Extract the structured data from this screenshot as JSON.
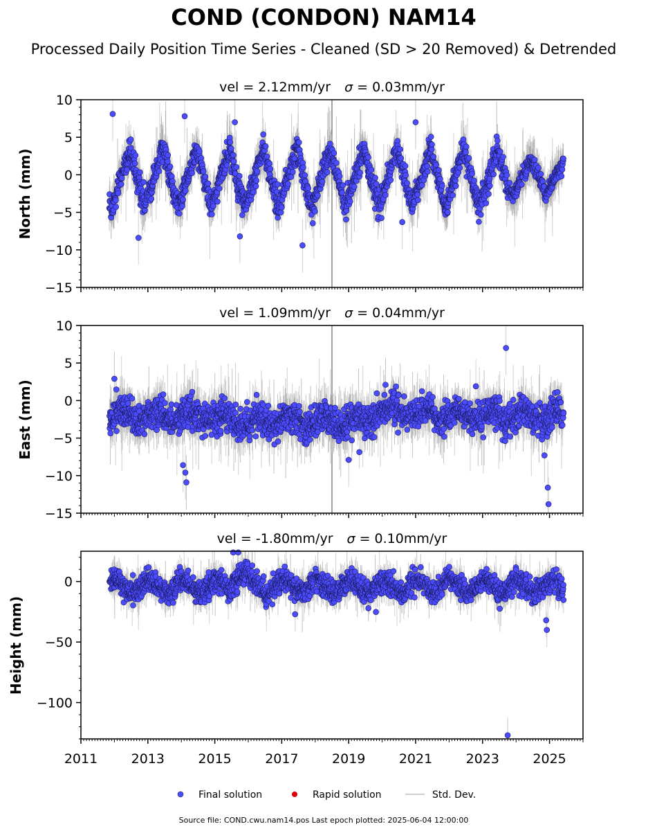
{
  "figure": {
    "title": "COND (CONDON) NAM14",
    "subtitle": "Processed Daily Position Time Series - Cleaned (SD > 20 Removed) & Detrended",
    "footer": "Source file: COND.cwu.nam14.pos  Last epoch plotted: 2025-06-04 12:00:00"
  },
  "colors": {
    "final_solution": "#4b4bff",
    "marker_edge": "#1a1a5a",
    "rapid_solution": "#e00000",
    "std_dev": "#bdbdbd",
    "std_dev_dense": "#555555"
  },
  "legend": {
    "placement": "bottom-center",
    "entries": [
      {
        "label": "Final solution",
        "marker": "circle",
        "color": "#4b4bff"
      },
      {
        "label": "Rapid solution",
        "marker": "circle",
        "color": "#e00000"
      },
      {
        "label": "Std. Dev.",
        "marker": "line",
        "color": "#bdbdbd"
      }
    ]
  },
  "chart_data": [
    {
      "type": "scatter",
      "component": "north",
      "title_prefix": "vel = 2.12mm/yr",
      "title_suffix": "= 0.03mm/yr",
      "sigma_symbol": "σ",
      "ylabel": "North (mm)",
      "xlim": [
        2011.0,
        2026.0
      ],
      "ylim": [
        -15,
        10
      ],
      "yticks": [
        -15,
        -10,
        -5,
        0,
        5,
        10
      ],
      "yticks_labels": [
        "−15",
        "−10",
        "−5",
        "0",
        "5",
        "10"
      ],
      "data_start": 2011.85,
      "data_end": 2025.42,
      "seasonal_amplitude_mm": 4.0,
      "noise_sd_mm": 0.8,
      "typical_std_dev_mm": 2.0,
      "outliers": [
        {
          "x": 2011.95,
          "y": 8.1
        },
        {
          "x": 2012.72,
          "y": -8.4
        },
        {
          "x": 2015.6,
          "y": 7.0
        },
        {
          "x": 2015.75,
          "y": -8.2
        },
        {
          "x": 2017.62,
          "y": -9.4
        },
        {
          "x": 2021.0,
          "y": 7.0
        },
        {
          "x": 2014.1,
          "y": 7.8
        },
        {
          "x": 2020.6,
          "y": -6.3
        }
      ]
    },
    {
      "type": "scatter",
      "component": "east",
      "title_prefix": "vel = 1.09mm/yr",
      "title_suffix": "= 0.04mm/yr",
      "sigma_symbol": "σ",
      "ylabel": "East (mm)",
      "xlim": [
        2011.0,
        2026.0
      ],
      "ylim": [
        -15,
        10
      ],
      "yticks": [
        -15,
        -10,
        -5,
        0,
        5,
        10
      ],
      "yticks_labels": [
        "−15",
        "−10",
        "−5",
        "0",
        "5",
        "10"
      ],
      "data_start": 2011.85,
      "data_end": 2025.42,
      "seasonal_amplitude_mm": 0.8,
      "baseline_mm": -2.0,
      "noise_sd_mm": 1.0,
      "typical_std_dev_mm": 2.0,
      "outliers": [
        {
          "x": 2012.0,
          "y": 2.9
        },
        {
          "x": 2014.05,
          "y": -8.6
        },
        {
          "x": 2014.12,
          "y": -9.6
        },
        {
          "x": 2014.15,
          "y": -10.9
        },
        {
          "x": 2019.0,
          "y": -7.9
        },
        {
          "x": 2023.7,
          "y": 7.0
        },
        {
          "x": 2024.85,
          "y": -7.3
        },
        {
          "x": 2024.95,
          "y": -11.6
        },
        {
          "x": 2024.97,
          "y": -13.8
        },
        {
          "x": 2020.1,
          "y": 2.1
        },
        {
          "x": 2022.8,
          "y": 1.9
        }
      ]
    },
    {
      "type": "scatter",
      "component": "height",
      "title_prefix": "vel = -1.80mm/yr",
      "title_suffix": "= 0.10mm/yr",
      "sigma_symbol": "σ",
      "ylabel": "Height (mm)",
      "xlim": [
        2011.0,
        2026.0
      ],
      "ylim": [
        -130,
        25
      ],
      "yticks": [
        -100,
        -50,
        0
      ],
      "yticks_labels": [
        "−100",
        "−50",
        "0"
      ],
      "xticks": [
        2011,
        2013,
        2015,
        2017,
        2019,
        2021,
        2023,
        2025
      ],
      "data_start": 2011.85,
      "data_end": 2025.42,
      "seasonal_amplitude_mm": 5.0,
      "noise_sd_mm": 4.5,
      "typical_std_dev_mm": 8.0,
      "outliers": [
        {
          "x": 2015.55,
          "y": 24.0
        },
        {
          "x": 2015.7,
          "y": 24.0
        },
        {
          "x": 2017.4,
          "y": -27.0
        },
        {
          "x": 2023.75,
          "y": -127.0
        },
        {
          "x": 2024.9,
          "y": -32.0
        },
        {
          "x": 2024.92,
          "y": -40.0
        }
      ]
    }
  ]
}
